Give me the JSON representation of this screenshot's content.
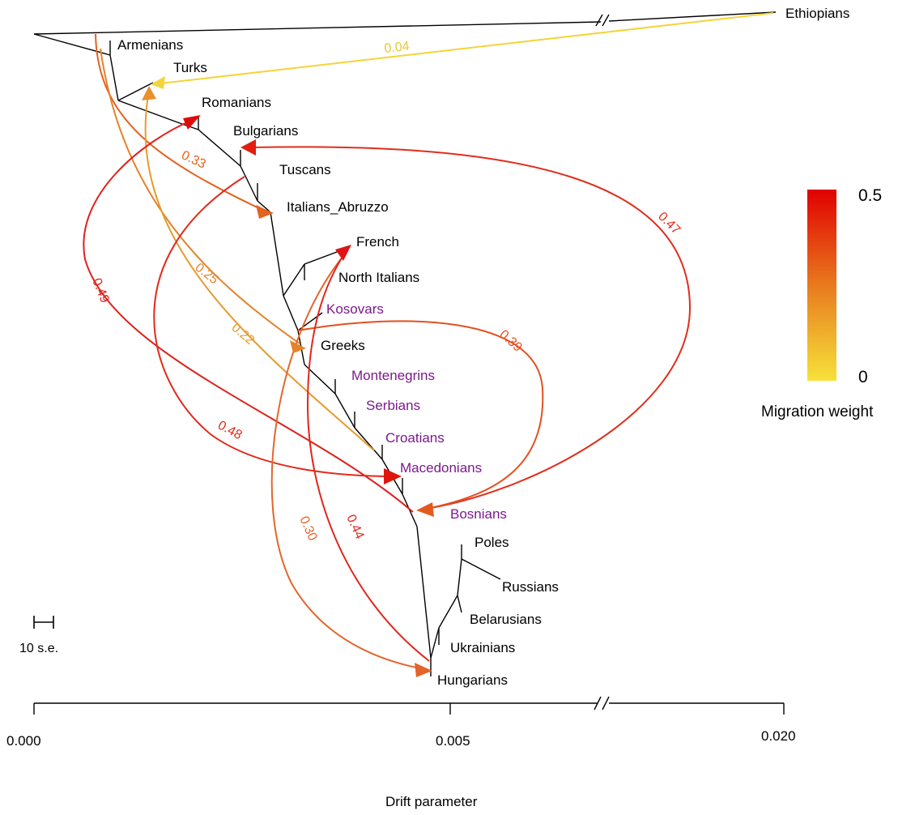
{
  "populations": {
    "ethiopians": "Ethiopians",
    "armenians": "Armenians",
    "turks": "Turks",
    "romanians": "Romanians",
    "bulgarians": "Bulgarians",
    "tuscans": "Tuscans",
    "italians_abruzzo": "Italians_Abruzzo",
    "french": "French",
    "north_italians": "North Italians",
    "kosovars": "Kosovars",
    "greeks": "Greeks",
    "montenegrins": "Montenegrins",
    "serbians": "Serbians",
    "croatians": "Croatians",
    "macedonians": "Macedonians",
    "bosnians": "Bosnians",
    "poles": "Poles",
    "russians": "Russians",
    "belarusians": "Belarusians",
    "ukrainians": "Ukrainians",
    "hungarians": "Hungarians"
  },
  "colors": {
    "black_label": "#000000",
    "balkan_label": "#7b1a8c",
    "scale_high": "#e00000",
    "scale_low": "#f6e23a"
  },
  "migrations": [
    {
      "from": "Ethiopians",
      "to": "Turks",
      "weight": "0.04"
    },
    {
      "from": "Armenians root",
      "to": "Italians_Abruzzo",
      "weight": "0.33"
    },
    {
      "from": "Armenians root",
      "to": "Greeks",
      "weight": "0.25"
    },
    {
      "from": "Croatians",
      "to": "Turks",
      "weight": "0.22"
    },
    {
      "from": "Bosnians",
      "to": "Romanians",
      "weight": "0.49"
    },
    {
      "from": "Tuscans",
      "to": "Macedonians",
      "weight": "0.48"
    },
    {
      "from": "Bosnians",
      "to": "Bulgarians",
      "weight": "0.47"
    },
    {
      "from": "Kosovars",
      "to": "Bosnians",
      "weight": "0.39"
    },
    {
      "from": "French",
      "to": "Hungarians",
      "weight": "0.30"
    },
    {
      "from": "Hungarians",
      "to": "French",
      "weight": "0.44"
    }
  ],
  "legend": {
    "max": "0.5",
    "min": "0",
    "title": "Migration weight"
  },
  "scale_bar": {
    "label": "10 s.e."
  },
  "axis": {
    "title": "Drift parameter",
    "ticks": [
      "0.000",
      "0.005",
      "0.020"
    ]
  }
}
